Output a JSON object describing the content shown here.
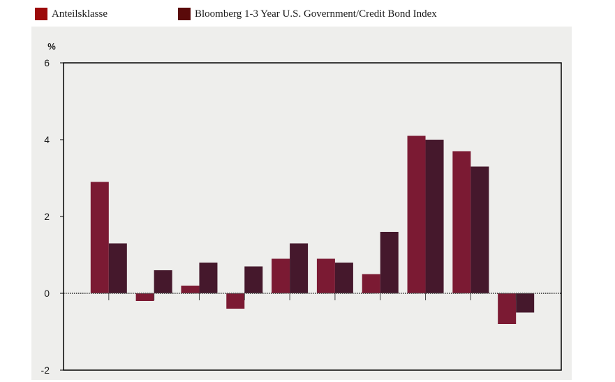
{
  "chart_data": {
    "type": "bar",
    "title": "",
    "xlabel": "",
    "ylabel": "%",
    "ylim": [
      -2,
      6
    ],
    "yticks": [
      -2,
      0,
      2,
      4,
      6
    ],
    "ytick_labels": [
      "-2",
      "0",
      "2",
      "4",
      "6"
    ],
    "categories": [
      "",
      "",
      "",
      "",
      "",
      "",
      "",
      "",
      "",
      ""
    ],
    "legend_position": "top-left",
    "grid": false,
    "series": [
      {
        "name": "Anteilsklasse",
        "color": "#7b1a33",
        "values": [
          2.9,
          -0.2,
          0.2,
          -0.4,
          0.9,
          0.9,
          0.5,
          4.1,
          3.7,
          -0.8
        ]
      },
      {
        "name": "Bloomberg 1-3 Year U.S. Government/Credit Bond Index",
        "color": "#45182c",
        "values": [
          1.3,
          0.6,
          0.8,
          0.7,
          1.3,
          0.8,
          1.6,
          4.0,
          3.3,
          -0.5
        ]
      }
    ]
  },
  "legend": {
    "colors": [
      "#9c0a0a",
      "#5a0a0a"
    ]
  }
}
